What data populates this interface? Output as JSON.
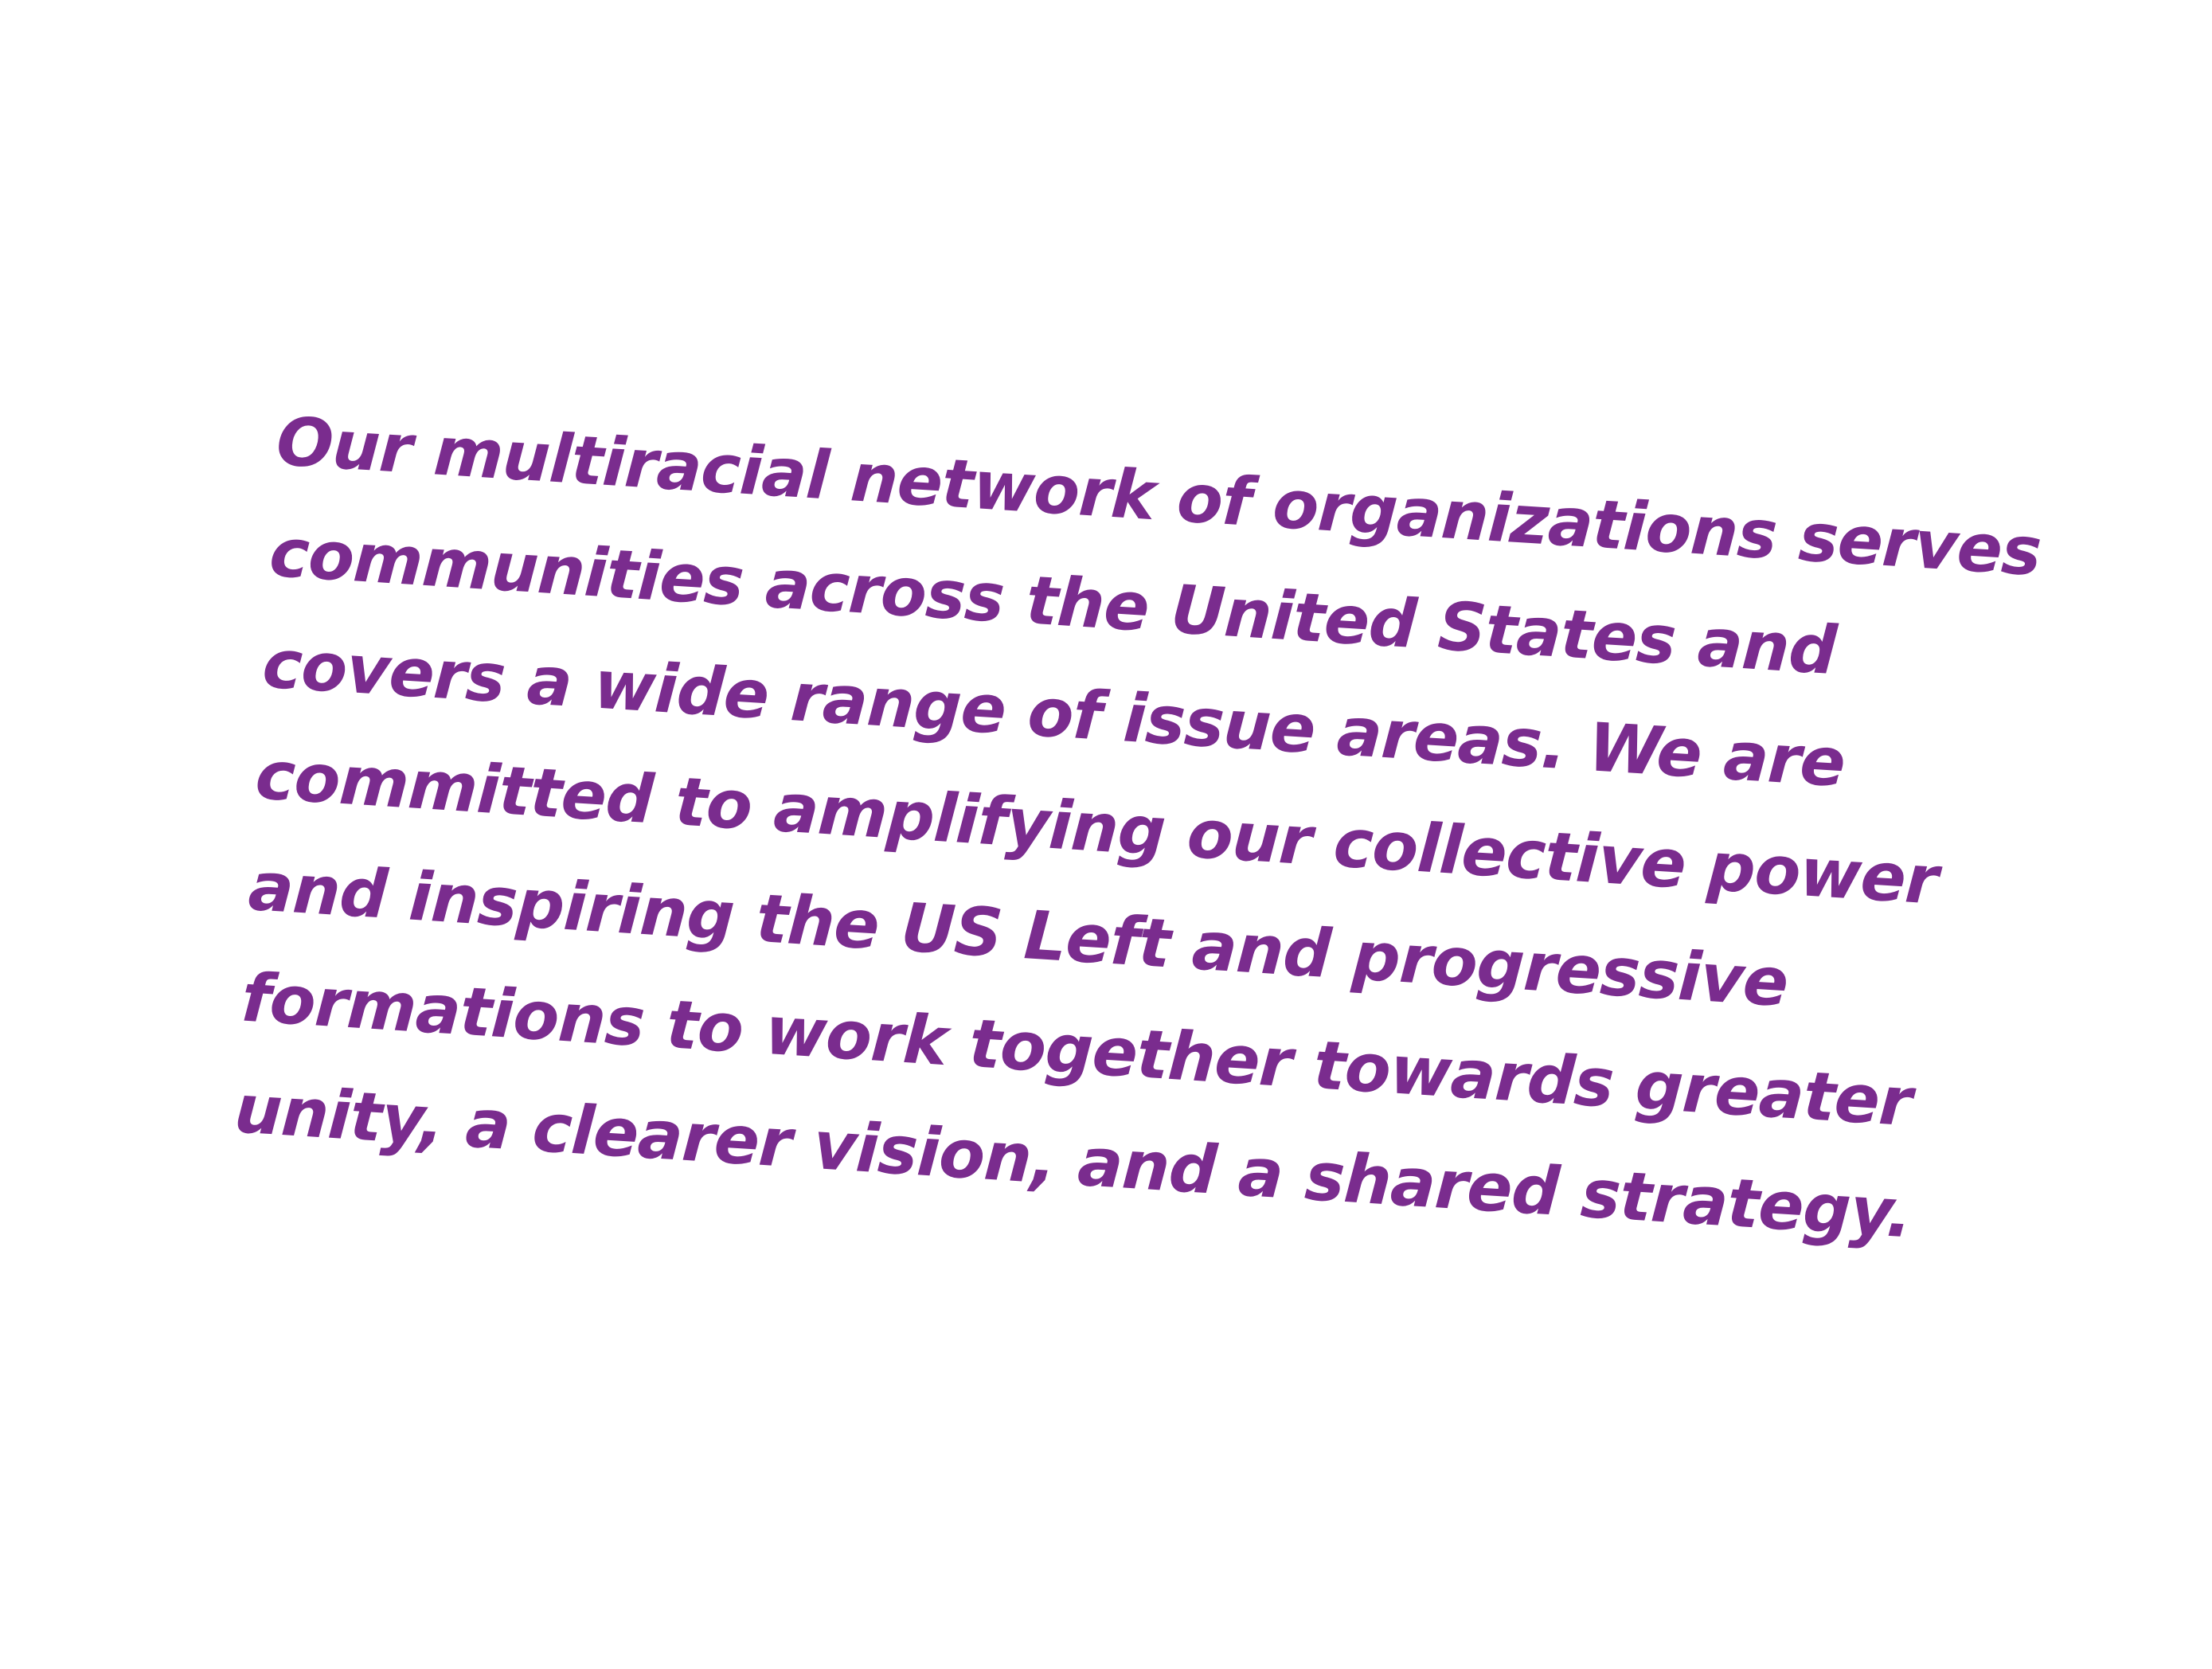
{
  "colors": {
    "background": "#ffffff",
    "text": "#7a2c8e"
  },
  "statement": {
    "lines": [
      "Our multiracial network of organizations serves",
      "communities across the United States and",
      "covers a wide range of issue areas. We are",
      "committed to amplifying our collective power",
      "and inspiring the US Left and progressive",
      "formations to work together towards greater",
      "unity, a clearer vision, and a shared strategy."
    ]
  }
}
